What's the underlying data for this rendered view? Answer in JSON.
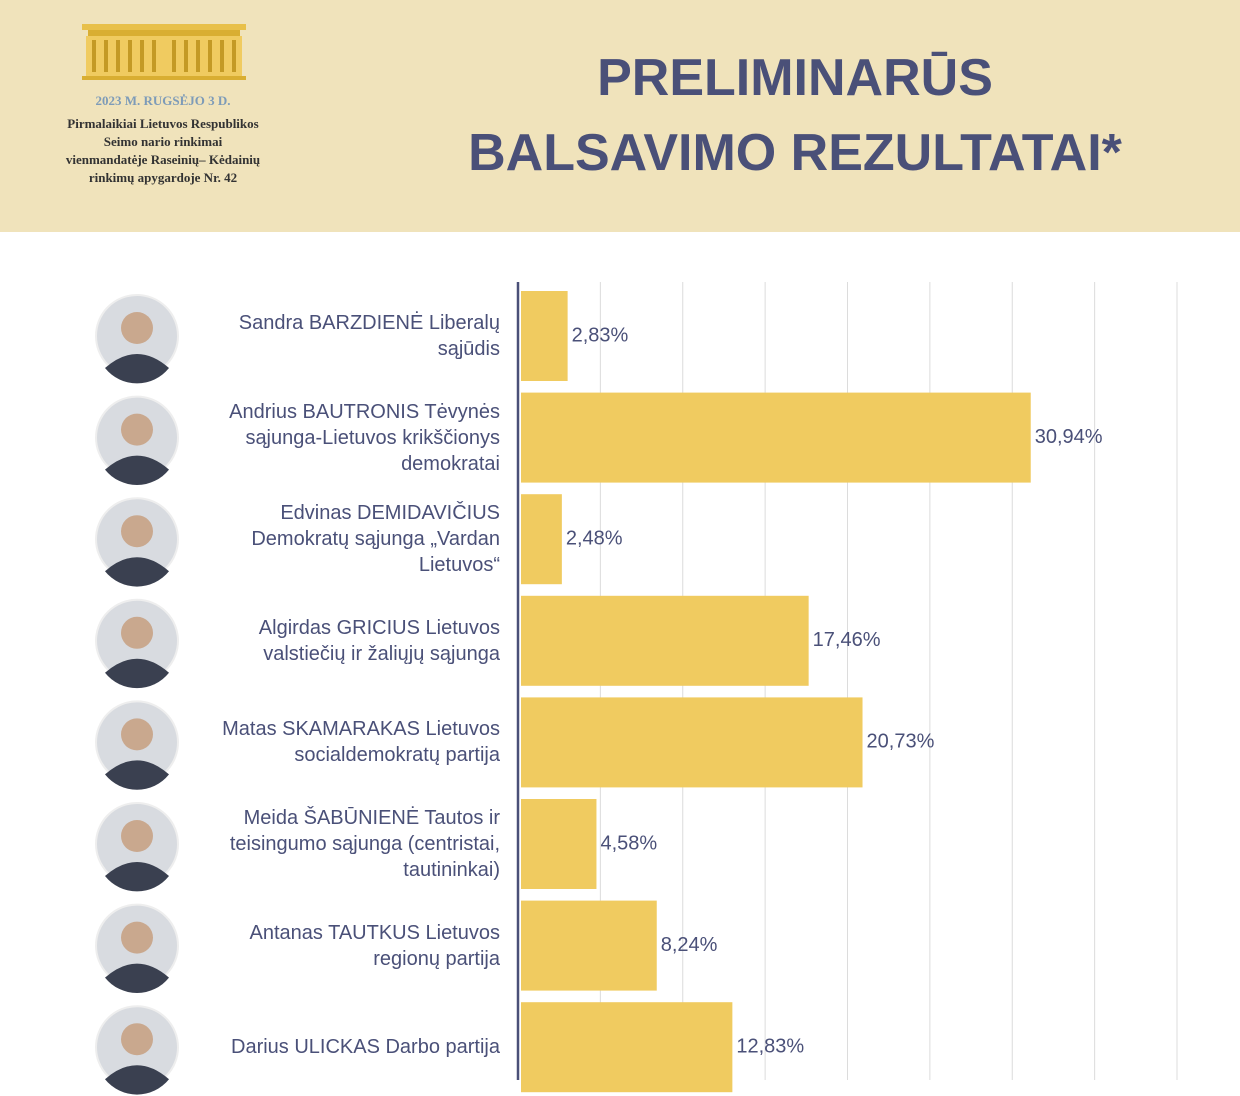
{
  "header": {
    "date": "2023 M. RUGSĖJO 3 D.",
    "subtitle": "Pirmalaikiai Lietuvos Respublikos Seimo nario rinkimai vienmandatėje Raseinių– Kėdainių rinkimų apygardoje Nr. 42"
  },
  "chart_data": {
    "type": "bar",
    "orientation": "horizontal",
    "title": [
      "PRELIMINARŪS",
      "BALSAVIMO REZULTATAI*"
    ],
    "categories": [
      "Sandra BARZDIENĖ Liberalų sąjūdis",
      "Andrius BAUTRONIS Tėvynės sąjunga-Lietuvos krikščionys demokratai",
      "Edvinas DEMIDAVIČIUS Demokratų sąjunga „Vardan Lietuvos“",
      "Algirdas GRICIUS Lietuvos valstiečių ir žaliųjų sąjunga",
      "Matas SKAMARAKAS Lietuvos socialdemokratų partija",
      "Meida ŠABŪNIENĖ Tautos ir teisingumo sąjunga (centristai, tautininkai)",
      "Antanas TAUTKUS Lietuvos regionų partija",
      "Darius ULICKAS Darbo partija"
    ],
    "values": [
      2.83,
      30.94,
      2.48,
      17.46,
      20.73,
      4.58,
      8.24,
      12.83
    ],
    "value_labels": [
      "2,83%",
      "30,94%",
      "2,48%",
      "17,46%",
      "20,73%",
      "4,58%",
      "8,24%",
      "12,83%"
    ],
    "color": "#f0cb60",
    "xlim": [
      0,
      40
    ],
    "xticks": [
      0,
      5,
      10,
      15,
      20,
      25,
      30,
      35,
      40
    ],
    "grid": true
  }
}
